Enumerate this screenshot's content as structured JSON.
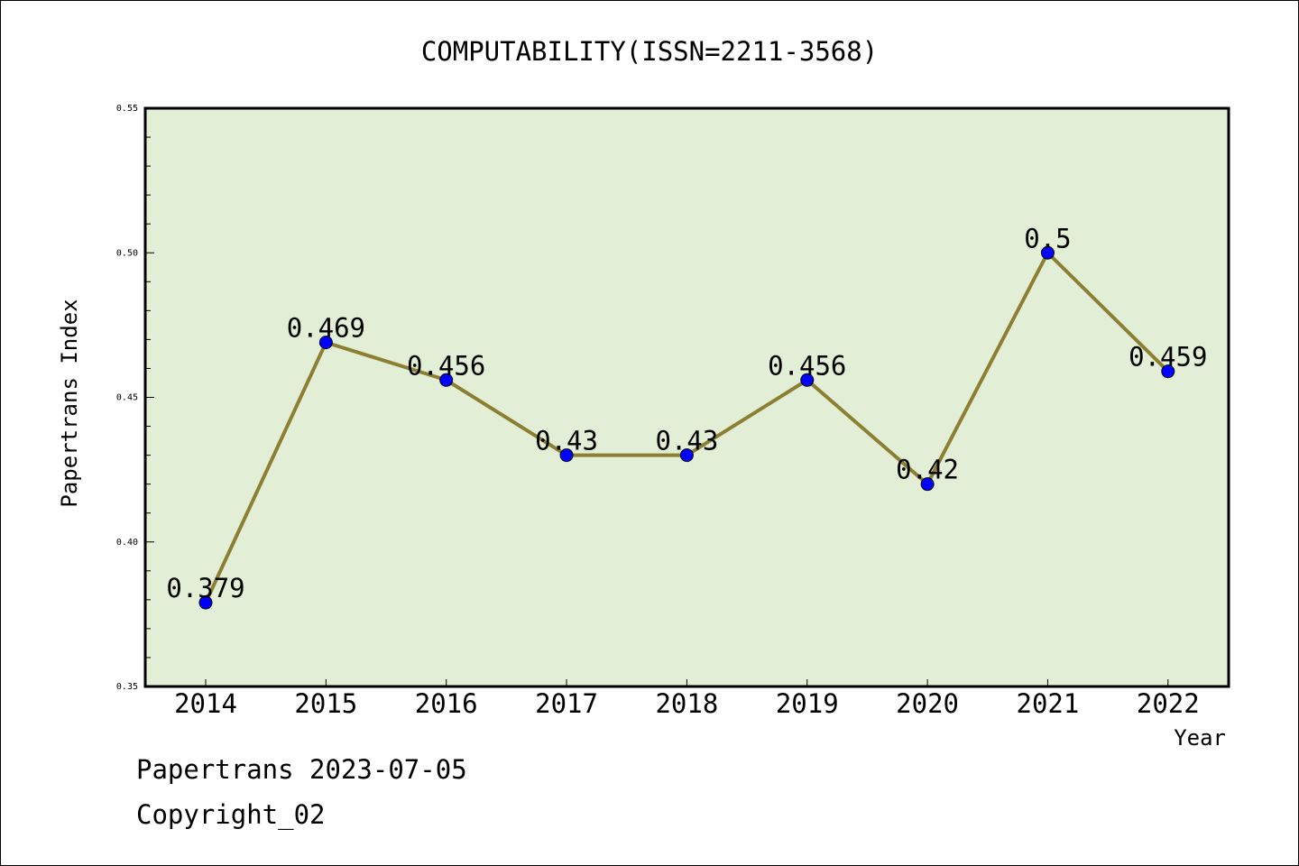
{
  "colors": {
    "plot_background": "#e2efd6",
    "line": "#8c7f32",
    "marker": "#0000ff",
    "marker_edge": "#000000"
  },
  "chart_data": {
    "type": "line",
    "title": "COMPUTABILITY(ISSN=2211-3568)",
    "xlabel": "Year",
    "ylabel": "Papertrans Index",
    "categories": [
      "2014",
      "2015",
      "2016",
      "2017",
      "2018",
      "2019",
      "2020",
      "2021",
      "2022"
    ],
    "values": [
      0.379,
      0.469,
      0.456,
      0.43,
      0.43,
      0.456,
      0.42,
      0.5,
      0.459
    ],
    "data_labels": [
      "0.379",
      "0.469",
      "0.456",
      "0.43",
      "0.43",
      "0.456",
      "0.42",
      "0.5",
      "0.459"
    ],
    "ylim": [
      0.35,
      0.55
    ],
    "yticks": [
      0.35,
      0.4,
      0.45,
      0.5,
      0.55
    ],
    "ytick_labels": [
      "0.35",
      "0.40",
      "0.45",
      "0.50",
      "0.55"
    ],
    "grid": false,
    "legend": false
  },
  "footer": {
    "date_line": "Papertrans 2023-07-05",
    "copyright": "Copyright_02"
  }
}
